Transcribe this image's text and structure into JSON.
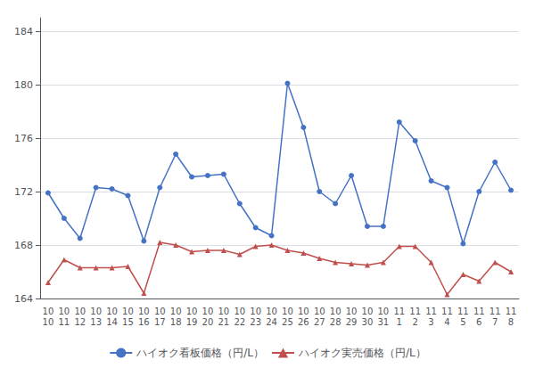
{
  "chart_data": {
    "type": "line",
    "categories": [
      "10\n10",
      "10\n11",
      "10\n12",
      "10\n13",
      "10\n14",
      "10\n15",
      "10\n16",
      "10\n17",
      "10\n18",
      "10\n19",
      "10\n20",
      "10\n21",
      "10\n22",
      "10\n23",
      "10\n24",
      "10\n25",
      "10\n26",
      "10\n27",
      "10\n28",
      "10\n29",
      "10\n30",
      "10\n31",
      "11\n1",
      "11\n2",
      "11\n3",
      "11\n4",
      "11\n5",
      "11\n6",
      "11\n7",
      "11\n8"
    ],
    "series": [
      {
        "name": "ハイオク看板価格（円/L）",
        "color": "#4472c4",
        "marker": "circle",
        "values": [
          171.9,
          170.0,
          168.5,
          172.3,
          172.2,
          171.7,
          168.3,
          172.3,
          174.8,
          173.1,
          173.2,
          173.3,
          171.1,
          169.3,
          168.7,
          180.1,
          176.8,
          172.0,
          171.1,
          173.2,
          169.4,
          169.4,
          177.2,
          175.8,
          172.8,
          172.3,
          168.1,
          172.0,
          174.2,
          172.1
        ]
      },
      {
        "name": "ハイオク実売価格（円/L）",
        "color": "#c0504d",
        "marker": "triangle",
        "values": [
          165.2,
          166.9,
          166.3,
          166.3,
          166.3,
          166.4,
          164.4,
          168.2,
          168.0,
          167.5,
          167.6,
          167.6,
          167.3,
          167.9,
          168.0,
          167.6,
          167.4,
          167.0,
          166.7,
          166.6,
          166.5,
          166.7,
          167.9,
          167.9,
          166.7,
          164.3,
          165.8,
          165.3,
          166.7,
          166.0
        ]
      }
    ],
    "ylim": [
      164,
      185
    ],
    "yticks": [
      164,
      168,
      172,
      176,
      180,
      184
    ],
    "grid": true,
    "legend": "bottom"
  }
}
